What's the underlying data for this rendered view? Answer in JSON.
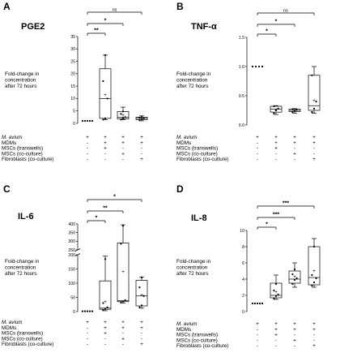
{
  "conditions": [
    "M. avium",
    "MDMs",
    "MSCs (transwells)",
    "MSCs (co-culture)",
    "Fibroblasts (co-culture)"
  ],
  "chart_data": [
    {
      "panel": "A",
      "type": "box",
      "title": "PGE2",
      "ylabel_lines": [
        "Fold-change in",
        "concentration",
        "after 72 hours"
      ],
      "ylim": [
        0,
        35
      ],
      "yticks": [
        0,
        5,
        10,
        15,
        20,
        25,
        30,
        35
      ],
      "groups": [
        {
          "min": 1,
          "q1": 1,
          "median": 1,
          "q3": 1,
          "max": 1,
          "mean": 1,
          "points": [
            1,
            1,
            1,
            1,
            1
          ],
          "is_control": true
        },
        {
          "min": 1.5,
          "q1": 2,
          "median": 10,
          "q3": 22,
          "max": 27.5,
          "mean": 11.5,
          "points": [
            1.5,
            2,
            10,
            17,
            27.5
          ]
        },
        {
          "min": 1.5,
          "q1": 1.8,
          "median": 2.5,
          "q3": 4.8,
          "max": 6.5,
          "mean": 3.3,
          "points": [
            1.5,
            2,
            2.5,
            3.8,
            4.8
          ]
        },
        {
          "min": 1,
          "q1": 1.5,
          "median": 2,
          "q3": 2.5,
          "max": 3,
          "mean": 2,
          "points": [
            1.3,
            1.7,
            2,
            2.3,
            2.6
          ]
        }
      ],
      "table": [
        [
          "+",
          "+",
          "+",
          "+"
        ],
        [
          "-",
          "+",
          "+",
          "+"
        ],
        [
          "-",
          "+",
          "-",
          "-"
        ],
        [
          "-",
          "-",
          "+",
          "-"
        ],
        [
          "-",
          "-",
          "-",
          "+"
        ]
      ],
      "significance": [
        {
          "from": 1,
          "to": 4,
          "label": "ns"
        },
        {
          "from": 1,
          "to": 3,
          "label": "*"
        },
        {
          "from": 1,
          "to": 2,
          "label": "**"
        }
      ]
    },
    {
      "panel": "B",
      "type": "box",
      "title": "TNF-α",
      "ylabel_lines": [
        "Fold-change in",
        "concentration",
        "after 72 hours"
      ],
      "ylim": [
        0,
        1.5
      ],
      "yticks": [
        0.0,
        0.5,
        1.0,
        1.5
      ],
      "ytick_labels": [
        "0.0",
        "0.5",
        "1.0",
        "1.5"
      ],
      "groups": [
        {
          "min": 1,
          "q1": 1,
          "median": 1,
          "q3": 1,
          "max": 1,
          "mean": 1,
          "points": [
            1,
            1,
            1,
            1
          ],
          "is_control": true
        },
        {
          "min": 0.18,
          "q1": 0.22,
          "median": 0.27,
          "q3": 0.32,
          "max": 0.33,
          "mean": 0.26,
          "points": [
            0.2,
            0.25,
            0.28,
            0.32
          ]
        },
        {
          "min": 0.2,
          "q1": 0.23,
          "median": 0.25,
          "q3": 0.27,
          "max": 0.28,
          "mean": 0.25,
          "points": [
            0.22,
            0.24,
            0.26,
            0.27
          ]
        },
        {
          "min": 0.2,
          "q1": 0.25,
          "median": 0.33,
          "q3": 0.85,
          "max": 1.0,
          "mean": 0.42,
          "points": [
            0.22,
            0.28,
            0.4,
            0.85
          ]
        }
      ],
      "table": [
        [
          "+",
          "+",
          "+",
          "+"
        ],
        [
          "-",
          "+",
          "+",
          "+"
        ],
        [
          "-",
          "+",
          "-",
          "-"
        ],
        [
          "-",
          "-",
          "+",
          "-"
        ],
        [
          "-",
          "-",
          "-",
          "+"
        ]
      ],
      "significance": [
        {
          "from": 1,
          "to": 4,
          "label": "ns"
        },
        {
          "from": 1,
          "to": 3,
          "label": "*"
        },
        {
          "from": 1,
          "to": 2,
          "label": "*"
        }
      ]
    },
    {
      "panel": "C",
      "type": "box",
      "title": "IL-6",
      "ylabel_lines": [
        "Fold-change in",
        "concentration",
        "after 72 hours"
      ],
      "axis_break": {
        "lower": [
          0,
          200
        ],
        "upper": [
          250,
          400
        ]
      },
      "yticks_lower": [
        0,
        50,
        100,
        150,
        200
      ],
      "yticks_upper": [
        250,
        300,
        350,
        400
      ],
      "groups": [
        {
          "min": 1,
          "q1": 1,
          "median": 1,
          "q3": 1,
          "max": 1,
          "mean": 1,
          "points": [
            1,
            1,
            1,
            1,
            1
          ],
          "is_control": true
        },
        {
          "min": 3,
          "q1": 8,
          "median": 12,
          "q3": 108,
          "max": 195,
          "mean": 35,
          "points": [
            5,
            10,
            15,
            30,
            185
          ]
        },
        {
          "min": 30,
          "q1": 35,
          "median": 38,
          "q3": 290,
          "max": 395,
          "mean": 140,
          "points": [
            32,
            36,
            40,
            285,
            390
          ]
        },
        {
          "min": 12,
          "q1": 20,
          "median": 55,
          "q3": 110,
          "max": 122,
          "mean": 58,
          "points": [
            15,
            22,
            55,
            85,
            120
          ]
        }
      ],
      "table": [
        [
          "+",
          "+",
          "+",
          "+"
        ],
        [
          "-",
          "+",
          "+",
          "+"
        ],
        [
          "-",
          "+",
          "-",
          "-"
        ],
        [
          "-",
          "-",
          "+",
          "-"
        ],
        [
          "-",
          "-",
          "-",
          "+"
        ]
      ],
      "significance": [
        {
          "from": 1,
          "to": 4,
          "label": "*"
        },
        {
          "from": 1,
          "to": 3,
          "label": "**"
        },
        {
          "from": 1,
          "to": 2,
          "label": "*"
        }
      ]
    },
    {
      "panel": "D",
      "type": "box",
      "title": "IL-8",
      "ylabel_lines": [
        "Fold-change in",
        "concentration",
        "after 72 hours"
      ],
      "ylim": [
        0,
        10
      ],
      "yticks": [
        0,
        2,
        4,
        6,
        8,
        10
      ],
      "groups": [
        {
          "min": 1,
          "q1": 1,
          "median": 1,
          "q3": 1,
          "max": 1,
          "mean": 1,
          "points": [
            1,
            1,
            1,
            1,
            1
          ],
          "is_control": true
        },
        {
          "min": 1.5,
          "q1": 1.7,
          "median": 2,
          "q3": 3.5,
          "max": 4.5,
          "mean": 2.4,
          "points": [
            1.6,
            1.9,
            2.1,
            2.6,
            3.4
          ]
        },
        {
          "min": 3,
          "q1": 3.5,
          "median": 4,
          "q3": 5,
          "max": 6,
          "mean": 4.3,
          "points": [
            3.4,
            3.9,
            4.1,
            4.6,
            5.2
          ]
        },
        {
          "min": 3,
          "q1": 3.3,
          "median": 4.2,
          "q3": 8,
          "max": 9,
          "mean": 5,
          "points": [
            3.2,
            3.6,
            4.1,
            4.5,
            8
          ]
        }
      ],
      "table": [
        [
          "+",
          "+",
          "+",
          "+"
        ],
        [
          "-",
          "+",
          "+",
          "+"
        ],
        [
          "-",
          "+",
          "-",
          "-"
        ],
        [
          "-",
          "-",
          "+",
          "-"
        ],
        [
          "-",
          "-",
          "-",
          "+"
        ]
      ],
      "significance": [
        {
          "from": 1,
          "to": 4,
          "label": "***"
        },
        {
          "from": 1,
          "to": 3,
          "label": "***"
        },
        {
          "from": 1,
          "to": 2,
          "label": "*"
        }
      ]
    }
  ]
}
